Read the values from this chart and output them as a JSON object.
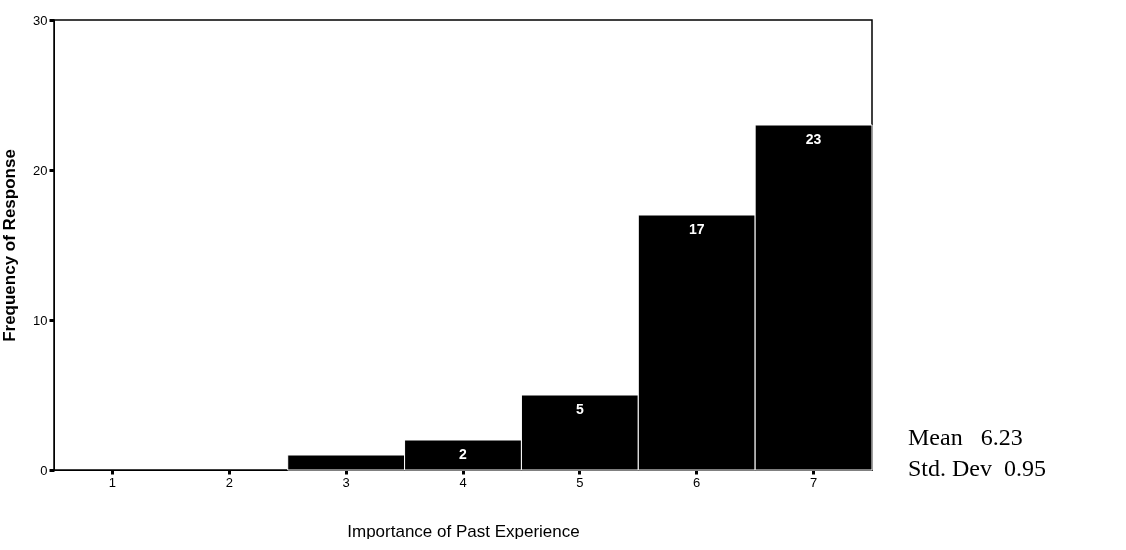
{
  "chart_data": {
    "type": "bar",
    "xlabel": "Importance of Past Experience",
    "ylabel": "Frequency of Response",
    "categories": [
      "1",
      "2",
      "3",
      "4",
      "5",
      "6",
      "7"
    ],
    "values": [
      0,
      0,
      1,
      2,
      5,
      17,
      23
    ],
    "value_labels": [
      null,
      null,
      null,
      "2",
      "5",
      "17",
      "23"
    ],
    "color": "#000000",
    "ylim": [
      0,
      30
    ],
    "yticks": [
      0,
      10,
      20,
      30
    ],
    "grid": false,
    "annotations": [
      "Mean   6.23",
      "Std. Dev  0.95"
    ]
  }
}
